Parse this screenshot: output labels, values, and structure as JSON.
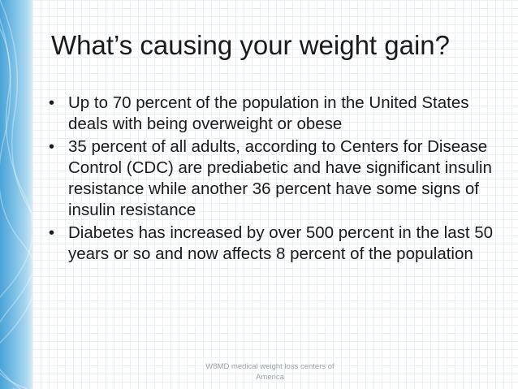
{
  "slide": {
    "title": "What’s causing your weight gain?",
    "bullets": [
      "Up to 70 percent of the population in the United States deals with being overweight or obese",
      "35 percent of all adults, according to Centers for Disease Control (CDC) are prediabetic and have significant insulin resistance while another 36 percent have some signs of insulin resistance",
      "Diabetes has increased by over 500 percent in the last 50 years or so and now affects 8 percent of the population"
    ],
    "bullet_symbol": "•",
    "footer": "W8MD medical weight loss centers of America"
  },
  "colors": {
    "accent": "#4aa3d8",
    "text": "#1a1a1a",
    "footer_text": "#9aa3a8"
  }
}
